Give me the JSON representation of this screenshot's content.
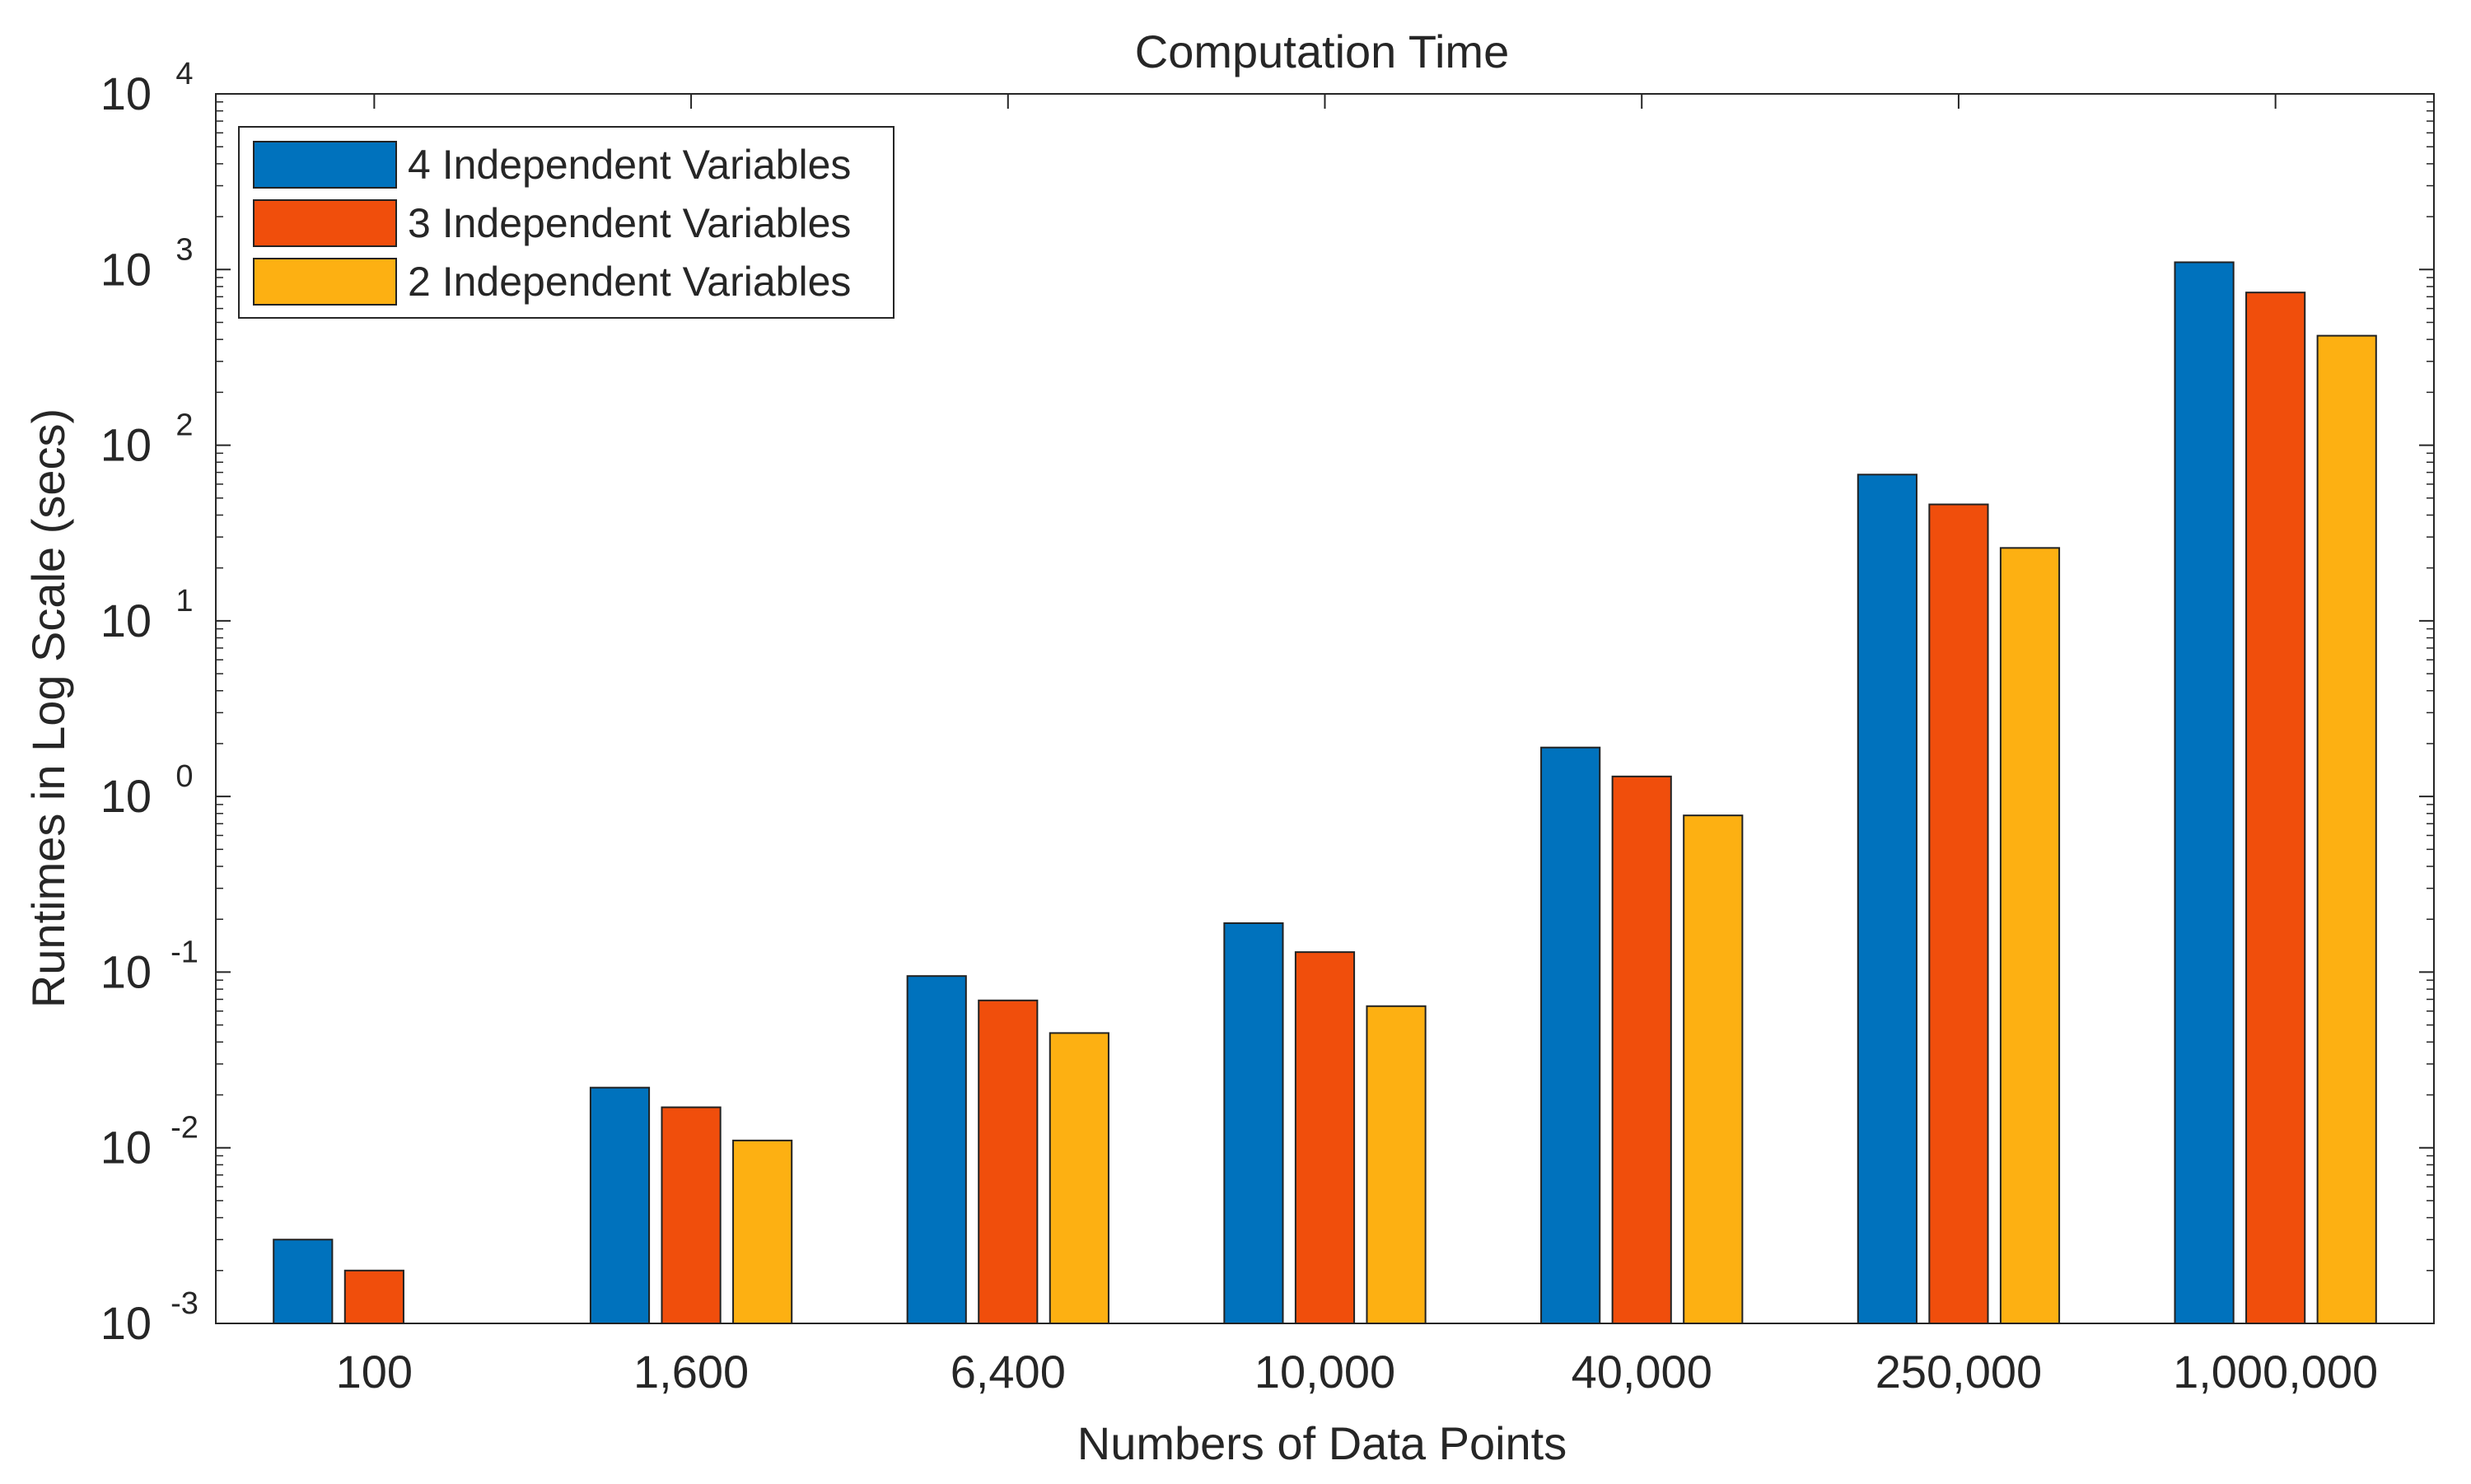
{
  "chart_data": {
    "type": "bar",
    "title": "Computation Time",
    "xlabel": "Numbers of Data Points",
    "ylabel": "Runtimes in Log Scale (secs)",
    "yscale": "log",
    "ylim": [
      0.001,
      10000
    ],
    "categories": [
      "100",
      "1,600",
      "6,400",
      "10,000",
      "40,000",
      "250,000",
      "1,000,000"
    ],
    "y_ticks": [
      {
        "base": "10",
        "exp": "-3"
      },
      {
        "base": "10",
        "exp": "-2"
      },
      {
        "base": "10",
        "exp": "-1"
      },
      {
        "base": "10",
        "exp": "0"
      },
      {
        "base": "10",
        "exp": "1"
      },
      {
        "base": "10",
        "exp": "2"
      },
      {
        "base": "10",
        "exp": "3"
      },
      {
        "base": "10",
        "exp": "4"
      }
    ],
    "legend_position": "top-left",
    "series": [
      {
        "name": "4 Independent Variables",
        "color": "#0072BD",
        "values": [
          0.003,
          0.022,
          0.095,
          0.19,
          1.9,
          68,
          1100
        ]
      },
      {
        "name": "3 Independent Variables",
        "color": "#F04E0C",
        "values": [
          0.002,
          0.017,
          0.069,
          0.13,
          1.3,
          46,
          740
        ]
      },
      {
        "name": "2 Independent Variables",
        "color": "#FDB012",
        "values": [
          null,
          0.011,
          0.045,
          0.064,
          0.78,
          26,
          420
        ]
      }
    ]
  }
}
